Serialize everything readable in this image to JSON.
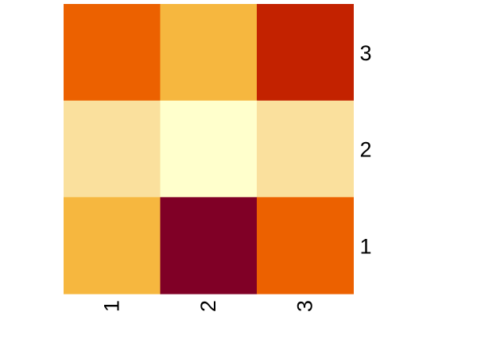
{
  "chart_data": {
    "type": "heatmap",
    "title": "",
    "xlabel": "",
    "ylabel": "",
    "x_categories": [
      "1",
      "2",
      "3"
    ],
    "y_categories": [
      "1",
      "2",
      "3"
    ],
    "grid": false,
    "legend": "none",
    "colorscale": "YlOrRd",
    "cells": [
      {
        "x": "1",
        "y": "3",
        "color": "#EC6100"
      },
      {
        "x": "2",
        "y": "3",
        "color": "#F6B73F"
      },
      {
        "x": "3",
        "y": "3",
        "color": "#C32200"
      },
      {
        "x": "1",
        "y": "2",
        "color": "#FAE09D"
      },
      {
        "x": "2",
        "y": "2",
        "color": "#FFFFCC"
      },
      {
        "x": "3",
        "y": "2",
        "color": "#FAE09D"
      },
      {
        "x": "1",
        "y": "1",
        "color": "#F6B73F"
      },
      {
        "x": "2",
        "y": "1",
        "color": "#800026"
      },
      {
        "x": "3",
        "y": "1",
        "color": "#EC6100"
      }
    ]
  }
}
